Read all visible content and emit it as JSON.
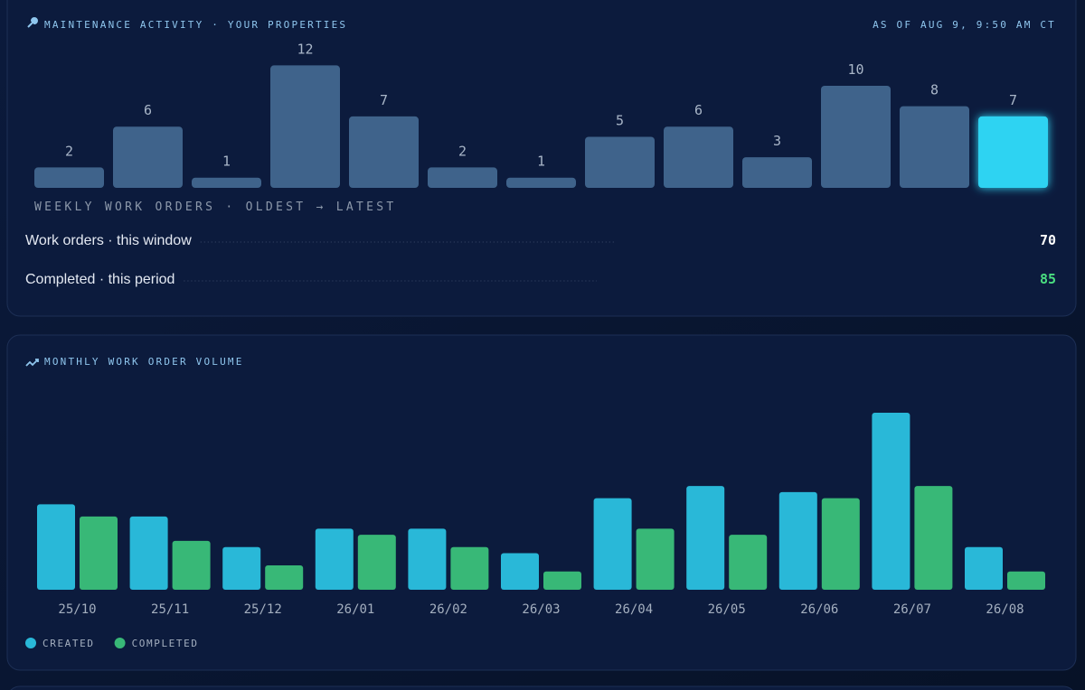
{
  "header": {
    "title": "MAINTENANCE ACTIVITY · YOUR PROPERTIES",
    "timestamp": "AS OF AUG 9, 9:50 AM CT"
  },
  "chart_data": [
    {
      "type": "bar",
      "x_label": "WEEKLY WORK ORDERS · OLDEST → LATEST",
      "values": [
        2,
        6,
        1,
        12,
        7,
        2,
        1,
        5,
        6,
        3,
        10,
        8,
        7
      ],
      "color": "#3f638b",
      "highlight_color": "#2fd3f2"
    },
    {
      "type": "grouped_bar",
      "title": "MONTHLY WORK ORDER VOLUME",
      "categories": [
        "25/10",
        "25/11",
        "25/12",
        "26/01",
        "26/02",
        "26/03",
        "26/04",
        "26/05",
        "26/06",
        "26/07",
        "26/08"
      ],
      "series": [
        {
          "name": "CREATED",
          "color": "#29b8d8",
          "values": [
            14,
            12,
            7,
            10,
            10,
            6,
            15,
            17,
            16,
            29,
            7
          ]
        },
        {
          "name": "COMPLETED",
          "color": "#38b877",
          "values": [
            12,
            8,
            4,
            9,
            7,
            3,
            10,
            9,
            15,
            17,
            3
          ]
        }
      ],
      "legend": "bottom-left"
    }
  ],
  "stats": [
    {
      "label": "Work orders · this window",
      "value": "70"
    },
    {
      "label": "Completed · this period",
      "value": "85"
    }
  ]
}
